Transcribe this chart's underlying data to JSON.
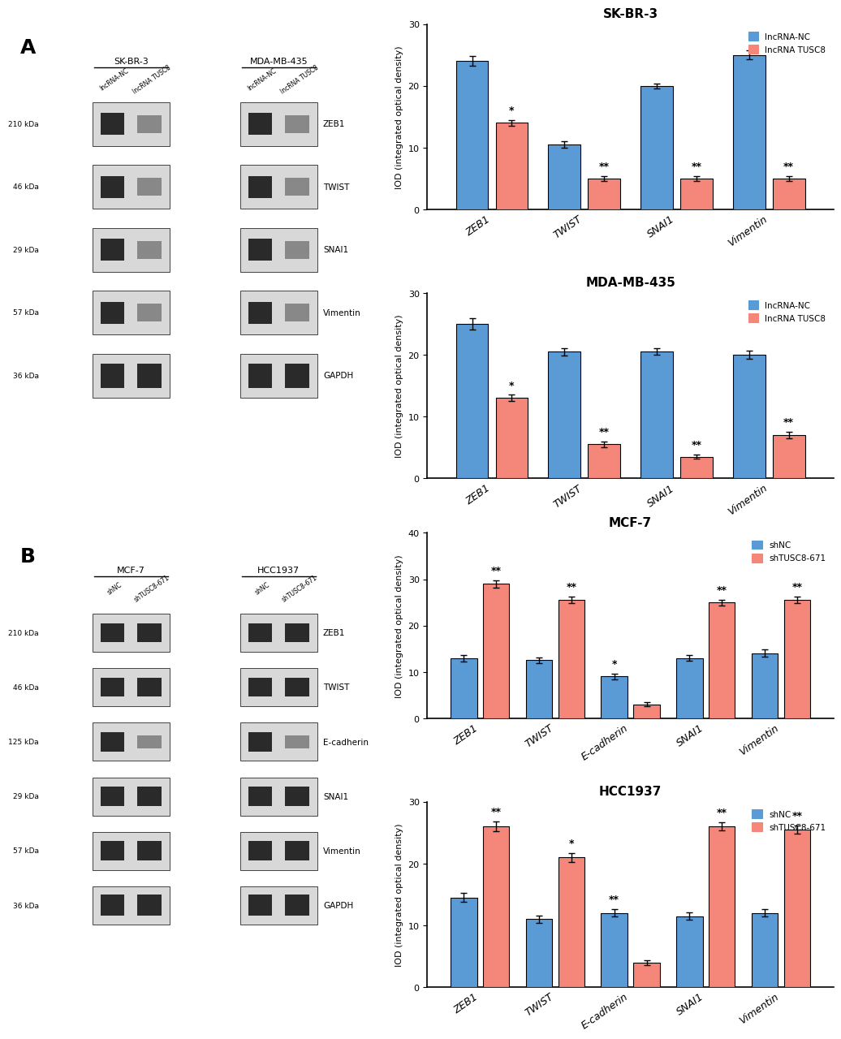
{
  "panel_A": {
    "title": "A",
    "blot_cell_lines": [
      "SK-BR-3",
      "MDA-MB-435"
    ],
    "blot_markers": [
      "ZEB1",
      "TWIST",
      "SNAI1",
      "Vimentin",
      "GAPDH"
    ],
    "blot_kdas": [
      "210 kDa",
      "46 kDa",
      "29 kDa",
      "57 kDa",
      "36 kDa"
    ],
    "chart1": {
      "title": "SK-BR-3",
      "categories": [
        "ZEB1",
        "TWIST",
        "SNAI1",
        "Vimentin"
      ],
      "nc_values": [
        24.0,
        10.5,
        20.0,
        25.0
      ],
      "tusc8_values": [
        14.0,
        5.0,
        5.0,
        5.0
      ],
      "nc_errors": [
        0.8,
        0.5,
        0.4,
        0.7
      ],
      "tusc8_errors": [
        0.5,
        0.4,
        0.4,
        0.4
      ],
      "significance": [
        "*",
        "**",
        "**",
        "**"
      ],
      "sig_on_tusc8": [
        true,
        true,
        true,
        true
      ],
      "ylim": [
        0,
        30
      ],
      "yticks": [
        0,
        10,
        20,
        30
      ],
      "legend1": "lncRNA-NC",
      "legend2": "lncRNA TUSC8"
    },
    "chart2": {
      "title": "MDA-MB-435",
      "categories": [
        "ZEB1",
        "TWIST",
        "SNAI1",
        "Vimentin"
      ],
      "nc_values": [
        25.0,
        20.5,
        20.5,
        20.0
      ],
      "tusc8_values": [
        13.0,
        5.5,
        3.5,
        7.0
      ],
      "nc_errors": [
        0.9,
        0.6,
        0.5,
        0.6
      ],
      "tusc8_errors": [
        0.5,
        0.5,
        0.3,
        0.5
      ],
      "significance": [
        "*",
        "**",
        "**",
        "**"
      ],
      "sig_on_tusc8": [
        true,
        true,
        true,
        true
      ],
      "ylim": [
        0,
        30
      ],
      "yticks": [
        0,
        10,
        20,
        30
      ],
      "legend1": "lncRNA-NC",
      "legend2": "lncRNA TUSC8"
    }
  },
  "panel_B": {
    "title": "B",
    "blot_cell_lines": [
      "MCF-7",
      "HCC1937"
    ],
    "blot_markers": [
      "ZEB1",
      "TWIST",
      "E-cadherin",
      "SNAI1",
      "Vimentin",
      "GAPDH"
    ],
    "blot_kdas": [
      "210 kDa",
      "46 kDa",
      "125 kDa",
      "29 kDa",
      "57 kDa",
      "36 kDa"
    ],
    "chart3": {
      "title": "MCF-7",
      "categories": [
        "ZEB1",
        "TWIST",
        "E-cadherin",
        "SNAI1",
        "Vimentin"
      ],
      "nc_values": [
        13.0,
        12.5,
        9.0,
        13.0,
        14.0
      ],
      "tusc8_values": [
        29.0,
        25.5,
        3.0,
        25.0,
        25.5
      ],
      "nc_errors": [
        0.7,
        0.6,
        0.6,
        0.6,
        0.8
      ],
      "tusc8_errors": [
        0.8,
        0.7,
        0.4,
        0.6,
        0.7
      ],
      "significance": [
        "**",
        "**",
        "*",
        "**",
        "**"
      ],
      "sig_on_tusc8": [
        true,
        true,
        false,
        true,
        true
      ],
      "ylim": [
        0,
        40
      ],
      "yticks": [
        0,
        10,
        20,
        30,
        40
      ],
      "legend1": "shNC",
      "legend2": "shTUSC8-671"
    },
    "chart4": {
      "title": "HCC1937",
      "categories": [
        "ZEB1",
        "TWIST",
        "E-cadherin",
        "SNAI1",
        "Vimentin"
      ],
      "nc_values": [
        14.5,
        11.0,
        12.0,
        11.5,
        12.0
      ],
      "tusc8_values": [
        26.0,
        21.0,
        4.0,
        26.0,
        25.5
      ],
      "nc_errors": [
        0.7,
        0.6,
        0.6,
        0.6,
        0.6
      ],
      "tusc8_errors": [
        0.8,
        0.7,
        0.4,
        0.7,
        0.7
      ],
      "significance": [
        "**",
        "*",
        "**",
        "**",
        "**"
      ],
      "sig_on_tusc8": [
        true,
        true,
        false,
        true,
        true
      ],
      "ylim": [
        0,
        30
      ],
      "yticks": [
        0,
        10,
        20,
        30
      ],
      "legend1": "shNC",
      "legend2": "shTUSC8-671"
    }
  },
  "colors": {
    "blue": "#5B9BD5",
    "red": "#F4877A",
    "bar_edge": "black",
    "blot_bg": "#d8d8d8",
    "blot_band_dark": "#2a2a2a",
    "blot_band_light": "#888888"
  },
  "ylabel": "IOD (integrated optical density)"
}
